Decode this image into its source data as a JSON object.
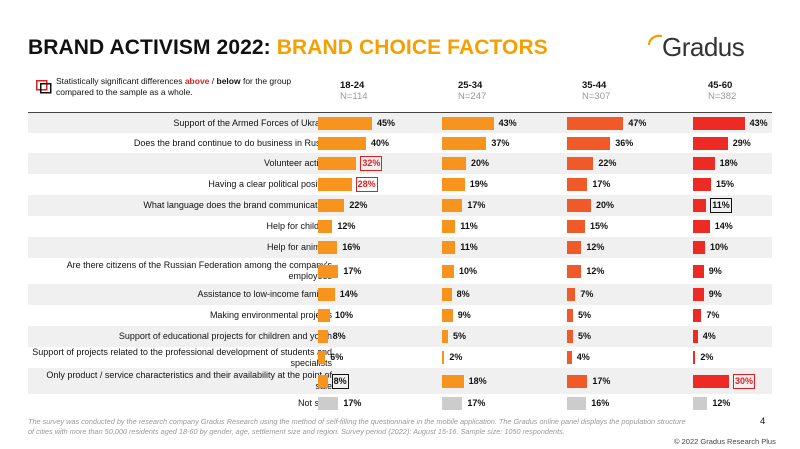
{
  "title": {
    "part1": "BRAND ACTIVISM 2022: ",
    "part2": "BRAND CHOICE FACTORS"
  },
  "logo": {
    "text": "Gradus",
    "accent": "#f5a000"
  },
  "legend": {
    "pre": "Statistically significant differences ",
    "above": "above",
    "sep": " / ",
    "below": "below",
    "post": " for the group compared to the sample as a whole."
  },
  "colors": {
    "col1": "#f7941d",
    "col2": "#f7941d",
    "col3": "#f05a28",
    "col4": "#ee2a24",
    "notsure": "#cccccc",
    "above": "#e02020",
    "below": "#111111"
  },
  "chart_data": {
    "type": "bar",
    "orientation": "horizontal",
    "categories": [
      "Support of the Armed Forces of Ukraine",
      "Does the brand continue to do business in Russia",
      "Volunteer activity",
      "Having a clear political position",
      "What language does the brand communicate in",
      "Help for children",
      "Help for animals",
      "Are there citizens of the Russian Federation among the company's employees",
      "Assistance to low-income families",
      "Making environmental projects",
      "Support of educational projects for children and youth",
      "Support of projects related to the professional development of students and specialists",
      "Only product / service characteristics and their availability at the point of sale",
      "Not sure"
    ],
    "series": [
      {
        "name": "18-24",
        "n": "N=114",
        "values": [
          45,
          40,
          32,
          28,
          22,
          12,
          16,
          17,
          14,
          10,
          8,
          6,
          8,
          17
        ],
        "labels": [
          "45%",
          "40%",
          "32%",
          "28%",
          "22%",
          "12%",
          "16%",
          "17%",
          "14%",
          "10%",
          "8%",
          "6%",
          "8%",
          "17%"
        ],
        "flags": [
          "",
          "",
          "above",
          "above",
          "",
          "",
          "",
          "",
          "",
          "",
          "",
          "",
          "below",
          ""
        ]
      },
      {
        "name": "25-34",
        "n": "N=247",
        "values": [
          43,
          37,
          20,
          19,
          17,
          11,
          11,
          10,
          8,
          9,
          5,
          2,
          18,
          17
        ],
        "labels": [
          "43%",
          "37%",
          "20%",
          "19%",
          "17%",
          "11%",
          "11%",
          "10%",
          "8%",
          "9%",
          "5%",
          "2%",
          "18%",
          "17%"
        ],
        "flags": [
          "",
          "",
          "",
          "",
          "",
          "",
          "",
          "",
          "",
          "",
          "",
          "",
          "",
          ""
        ]
      },
      {
        "name": "35-44",
        "n": "N=307",
        "values": [
          47,
          36,
          22,
          17,
          20,
          15,
          12,
          12,
          7,
          5,
          5,
          4,
          17,
          16
        ],
        "labels": [
          "47%",
          "36%",
          "22%",
          "17%",
          "20%",
          "15%",
          "12%",
          "12%",
          "7%",
          "5%",
          "5%",
          "4%",
          "17%",
          "16%"
        ],
        "flags": [
          "",
          "",
          "",
          "",
          "",
          "",
          "",
          "",
          "",
          "",
          "",
          "",
          "",
          ""
        ]
      },
      {
        "name": "45-60",
        "n": "N=382",
        "values": [
          43,
          29,
          18,
          15,
          11,
          14,
          10,
          9,
          9,
          7,
          4,
          2,
          30,
          12
        ],
        "labels": [
          "43%",
          "29%",
          "18%",
          "15%",
          "11%",
          "14%",
          "10%",
          "9%",
          "9%",
          "7%",
          "4%",
          "2%",
          "30%",
          "12%"
        ],
        "flags": [
          "",
          "",
          "",
          "",
          "below",
          "",
          "",
          "",
          "",
          "",
          "",
          "",
          "above",
          ""
        ]
      }
    ]
  },
  "footnote": "The survey was conducted by the research company Gradus Research using the method of self-filling the questionnaire in the mobile application. The Gradus online panel displays the population structure of cities with more than 50,000 residents aged 18-60 by gender, age, settlement size and region. Survey period (2022): August 15-16. Sample size: 1050 respondents.",
  "page_number": "4",
  "copyright": "© 2022 Gradus Research Plus"
}
